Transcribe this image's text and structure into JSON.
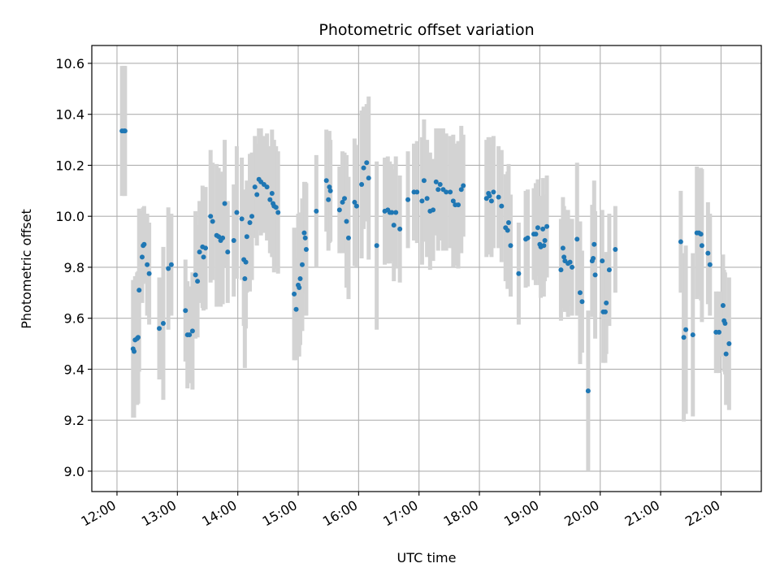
{
  "chart_data": {
    "type": "scatter",
    "title": "Photometric offset variation",
    "xlabel": "UTC time",
    "ylabel": "Photometric offset",
    "x_unit": "UTC time of day",
    "xlim": [
      "11:35",
      "22:40"
    ],
    "ylim": [
      8.92,
      10.67
    ],
    "x_ticks": [
      "12:00",
      "13:00",
      "14:00",
      "15:00",
      "16:00",
      "17:00",
      "18:00",
      "19:00",
      "20:00",
      "21:00",
      "22:00"
    ],
    "y_ticks": [
      "9.0",
      "9.2",
      "9.4",
      "9.6",
      "9.8",
      "10.0",
      "10.2",
      "10.4",
      "10.6"
    ],
    "grid": true,
    "x_tick_rotation": "slanted",
    "colors": {
      "points": "#1f77b4",
      "errorbars": "#d3d3d3",
      "grid": "#b0b0b0"
    },
    "series": [
      {
        "points": [
          {
            "x": "12:05",
            "y": 10.335,
            "err": 0.255
          },
          {
            "x": "12:07",
            "y": 10.335,
            "err": 0.255
          },
          {
            "x": "12:08",
            "y": 10.335,
            "err": 0.255
          },
          {
            "x": "12:16",
            "y": 9.48,
            "err": 0.27
          },
          {
            "x": "12:17",
            "y": 9.47,
            "err": 0.26
          },
          {
            "x": "12:18",
            "y": 9.515,
            "err": 0.25
          },
          {
            "x": "12:20",
            "y": 9.52,
            "err": 0.26
          },
          {
            "x": "12:21",
            "y": 9.525,
            "err": 0.26
          },
          {
            "x": "12:22",
            "y": 9.71,
            "err": 0.32
          },
          {
            "x": "12:25",
            "y": 9.84,
            "err": 0.18
          },
          {
            "x": "12:26",
            "y": 9.885,
            "err": 0.15
          },
          {
            "x": "12:27",
            "y": 9.89,
            "err": 0.15
          },
          {
            "x": "12:30",
            "y": 9.81,
            "err": 0.2
          },
          {
            "x": "12:32",
            "y": 9.775,
            "err": 0.2
          },
          {
            "x": "12:42",
            "y": 9.56,
            "err": 0.2
          },
          {
            "x": "12:46",
            "y": 9.58,
            "err": 0.3
          },
          {
            "x": "12:51",
            "y": 9.795,
            "err": 0.24
          },
          {
            "x": "12:54",
            "y": 9.81,
            "err": 0.2
          },
          {
            "x": "13:08",
            "y": 9.63,
            "err": 0.2
          },
          {
            "x": "13:10",
            "y": 9.535,
            "err": 0.21
          },
          {
            "x": "13:12",
            "y": 9.535,
            "err": 0.19
          },
          {
            "x": "13:15",
            "y": 9.55,
            "err": 0.23
          },
          {
            "x": "13:18",
            "y": 9.77,
            "err": 0.25
          },
          {
            "x": "13:20",
            "y": 9.745,
            "err": 0.22
          },
          {
            "x": "13:22",
            "y": 9.86,
            "err": 0.2
          },
          {
            "x": "13:25",
            "y": 9.88,
            "err": 0.24
          },
          {
            "x": "13:26",
            "y": 9.84,
            "err": 0.21
          },
          {
            "x": "13:28",
            "y": 9.875,
            "err": 0.24
          },
          {
            "x": "13:33",
            "y": 10.0,
            "err": 0.26
          },
          {
            "x": "13:35",
            "y": 9.98,
            "err": 0.23
          },
          {
            "x": "13:39",
            "y": 9.925,
            "err": 0.28
          },
          {
            "x": "13:41",
            "y": 9.92,
            "err": 0.27
          },
          {
            "x": "13:43",
            "y": 9.905,
            "err": 0.26
          },
          {
            "x": "13:45",
            "y": 9.915,
            "err": 0.26
          },
          {
            "x": "13:47",
            "y": 10.05,
            "err": 0.25
          },
          {
            "x": "13:50",
            "y": 9.86,
            "err": 0.2
          },
          {
            "x": "13:56",
            "y": 9.905,
            "err": 0.22
          },
          {
            "x": "13:59",
            "y": 10.015,
            "err": 0.26
          },
          {
            "x": "14:04",
            "y": 9.99,
            "err": 0.24
          },
          {
            "x": "14:06",
            "y": 9.83,
            "err": 0.26
          },
          {
            "x": "14:07",
            "y": 9.755,
            "err": 0.35
          },
          {
            "x": "14:08",
            "y": 9.82,
            "err": 0.26
          },
          {
            "x": "14:09",
            "y": 9.92,
            "err": 0.22
          },
          {
            "x": "14:12",
            "y": 9.975,
            "err": 0.27
          },
          {
            "x": "14:14",
            "y": 10.0,
            "err": 0.25
          },
          {
            "x": "14:17",
            "y": 10.115,
            "err": 0.2
          },
          {
            "x": "14:19",
            "y": 10.085,
            "err": 0.2
          },
          {
            "x": "14:21",
            "y": 10.145,
            "err": 0.2
          },
          {
            "x": "14:23",
            "y": 10.135,
            "err": 0.21
          },
          {
            "x": "14:26",
            "y": 10.125,
            "err": 0.19
          },
          {
            "x": "14:29",
            "y": 10.115,
            "err": 0.21
          },
          {
            "x": "14:32",
            "y": 10.065,
            "err": 0.21
          },
          {
            "x": "14:34",
            "y": 10.09,
            "err": 0.25
          },
          {
            "x": "14:35",
            "y": 10.05,
            "err": 0.21
          },
          {
            "x": "14:36",
            "y": 10.04,
            "err": 0.26
          },
          {
            "x": "14:38",
            "y": 10.035,
            "err": 0.24
          },
          {
            "x": "14:40",
            "y": 10.015,
            "err": 0.24
          },
          {
            "x": "14:56",
            "y": 9.695,
            "err": 0.26
          },
          {
            "x": "14:58",
            "y": 9.635,
            "err": 0.2
          },
          {
            "x": "15:00",
            "y": 9.73,
            "err": 0.28
          },
          {
            "x": "15:01",
            "y": 9.72,
            "err": 0.27
          },
          {
            "x": "15:02",
            "y": 9.755,
            "err": 0.26
          },
          {
            "x": "15:04",
            "y": 9.81,
            "err": 0.26
          },
          {
            "x": "15:06",
            "y": 9.935,
            "err": 0.2
          },
          {
            "x": "15:07",
            "y": 9.915,
            "err": 0.22
          },
          {
            "x": "15:08",
            "y": 9.87,
            "err": 0.26
          },
          {
            "x": "15:18",
            "y": 10.02,
            "err": 0.22
          },
          {
            "x": "15:28",
            "y": 10.14,
            "err": 0.2
          },
          {
            "x": "15:30",
            "y": 10.065,
            "err": 0.2
          },
          {
            "x": "15:31",
            "y": 10.115,
            "err": 0.22
          },
          {
            "x": "15:32",
            "y": 10.1,
            "err": 0.2
          },
          {
            "x": "15:41",
            "y": 10.025,
            "err": 0.17
          },
          {
            "x": "15:44",
            "y": 10.055,
            "err": 0.2
          },
          {
            "x": "15:46",
            "y": 10.07,
            "err": 0.18
          },
          {
            "x": "15:48",
            "y": 9.98,
            "err": 0.26
          },
          {
            "x": "15:50",
            "y": 9.915,
            "err": 0.24
          },
          {
            "x": "15:56",
            "y": 10.055,
            "err": 0.25
          },
          {
            "x": "15:58",
            "y": 10.04,
            "err": 0.24
          },
          {
            "x": "16:03",
            "y": 10.125,
            "err": 0.29
          },
          {
            "x": "16:05",
            "y": 10.19,
            "err": 0.24
          },
          {
            "x": "16:08",
            "y": 10.21,
            "err": 0.23
          },
          {
            "x": "16:10",
            "y": 10.15,
            "err": 0.32
          },
          {
            "x": "16:18",
            "y": 9.885,
            "err": 0.33
          },
          {
            "x": "16:26",
            "y": 10.02,
            "err": 0.21
          },
          {
            "x": "16:29",
            "y": 10.025,
            "err": 0.21
          },
          {
            "x": "16:31",
            "y": 10.015,
            "err": 0.2
          },
          {
            "x": "16:33",
            "y": 10.015,
            "err": 0.19
          },
          {
            "x": "16:35",
            "y": 9.965,
            "err": 0.22
          },
          {
            "x": "16:37",
            "y": 10.015,
            "err": 0.22
          },
          {
            "x": "16:41",
            "y": 9.95,
            "err": 0.21
          },
          {
            "x": "16:49",
            "y": 10.065,
            "err": 0.19
          },
          {
            "x": "16:55",
            "y": 10.095,
            "err": 0.19
          },
          {
            "x": "16:58",
            "y": 10.095,
            "err": 0.2
          },
          {
            "x": "17:03",
            "y": 10.06,
            "err": 0.25
          },
          {
            "x": "17:05",
            "y": 10.14,
            "err": 0.24
          },
          {
            "x": "17:08",
            "y": 10.07,
            "err": 0.23
          },
          {
            "x": "17:11",
            "y": 10.02,
            "err": 0.23
          },
          {
            "x": "17:14",
            "y": 10.025,
            "err": 0.2
          },
          {
            "x": "17:17",
            "y": 10.135,
            "err": 0.21
          },
          {
            "x": "17:19",
            "y": 10.105,
            "err": 0.24
          },
          {
            "x": "17:21",
            "y": 10.125,
            "err": 0.22
          },
          {
            "x": "17:24",
            "y": 10.105,
            "err": 0.24
          },
          {
            "x": "17:27",
            "y": 10.095,
            "err": 0.23
          },
          {
            "x": "17:31",
            "y": 10.095,
            "err": 0.22
          },
          {
            "x": "17:34",
            "y": 10.06,
            "err": 0.26
          },
          {
            "x": "17:36",
            "y": 10.045,
            "err": 0.24
          },
          {
            "x": "17:39",
            "y": 10.045,
            "err": 0.25
          },
          {
            "x": "17:42",
            "y": 10.105,
            "err": 0.25
          },
          {
            "x": "17:44",
            "y": 10.12,
            "err": 0.2
          },
          {
            "x": "18:07",
            "y": 10.07,
            "err": 0.23
          },
          {
            "x": "18:09",
            "y": 10.09,
            "err": 0.22
          },
          {
            "x": "18:10",
            "y": 10.08,
            "err": 0.23
          },
          {
            "x": "18:12",
            "y": 10.06,
            "err": 0.22
          },
          {
            "x": "18:14",
            "y": 10.095,
            "err": 0.22
          },
          {
            "x": "18:19",
            "y": 10.075,
            "err": 0.2
          },
          {
            "x": "18:22",
            "y": 10.04,
            "err": 0.22
          },
          {
            "x": "18:26",
            "y": 9.955,
            "err": 0.21
          },
          {
            "x": "18:28",
            "y": 9.945,
            "err": 0.23
          },
          {
            "x": "18:29",
            "y": 9.975,
            "err": 0.23
          },
          {
            "x": "18:31",
            "y": 9.885,
            "err": 0.2
          },
          {
            "x": "18:39",
            "y": 9.775,
            "err": 0.2
          },
          {
            "x": "18:46",
            "y": 9.91,
            "err": 0.19
          },
          {
            "x": "18:48",
            "y": 9.915,
            "err": 0.19
          },
          {
            "x": "18:54",
            "y": 9.93,
            "err": 0.18
          },
          {
            "x": "18:56",
            "y": 9.93,
            "err": 0.2
          },
          {
            "x": "18:58",
            "y": 9.955,
            "err": 0.19
          },
          {
            "x": "19:00",
            "y": 9.89,
            "err": 0.16
          },
          {
            "x": "19:01",
            "y": 9.88,
            "err": 0.2
          },
          {
            "x": "19:03",
            "y": 9.95,
            "err": 0.2
          },
          {
            "x": "19:04",
            "y": 9.885,
            "err": 0.2
          },
          {
            "x": "19:05",
            "y": 9.905,
            "err": 0.16
          },
          {
            "x": "19:07",
            "y": 9.96,
            "err": 0.2
          },
          {
            "x": "19:21",
            "y": 9.79,
            "err": 0.2
          },
          {
            "x": "19:23",
            "y": 9.875,
            "err": 0.2
          },
          {
            "x": "19:24",
            "y": 9.84,
            "err": 0.2
          },
          {
            "x": "19:25",
            "y": 9.825,
            "err": 0.2
          },
          {
            "x": "19:28",
            "y": 9.815,
            "err": 0.21
          },
          {
            "x": "19:30",
            "y": 9.82,
            "err": 0.17
          },
          {
            "x": "19:32",
            "y": 9.8,
            "err": 0.19
          },
          {
            "x": "19:37",
            "y": 9.91,
            "err": 0.3
          },
          {
            "x": "19:40",
            "y": 9.7,
            "err": 0.28
          },
          {
            "x": "19:42",
            "y": 9.665,
            "err": 0.2
          },
          {
            "x": "19:48",
            "y": 9.315,
            "err": 0.315
          },
          {
            "x": "19:52",
            "y": 9.825,
            "err": 0.22
          },
          {
            "x": "19:53",
            "y": 9.835,
            "err": 0.21
          },
          {
            "x": "19:54",
            "y": 9.89,
            "err": 0.25
          },
          {
            "x": "19:55",
            "y": 9.77,
            "err": 0.25
          },
          {
            "x": "20:02",
            "y": 9.825,
            "err": 0.2
          },
          {
            "x": "20:03",
            "y": 9.625,
            "err": 0.2
          },
          {
            "x": "20:05",
            "y": 9.625,
            "err": 0.2
          },
          {
            "x": "20:06",
            "y": 9.66,
            "err": 0.2
          },
          {
            "x": "20:09",
            "y": 9.79,
            "err": 0.22
          },
          {
            "x": "20:15",
            "y": 9.87,
            "err": 0.17
          },
          {
            "x": "21:20",
            "y": 9.9,
            "err": 0.2
          },
          {
            "x": "21:23",
            "y": 9.525,
            "err": 0.33
          },
          {
            "x": "21:25",
            "y": 9.555,
            "err": 0.33
          },
          {
            "x": "21:32",
            "y": 9.535,
            "err": 0.32
          },
          {
            "x": "21:36",
            "y": 9.935,
            "err": 0.26
          },
          {
            "x": "21:38",
            "y": 9.935,
            "err": 0.25
          },
          {
            "x": "21:40",
            "y": 9.93,
            "err": 0.26
          },
          {
            "x": "21:41",
            "y": 9.885,
            "err": 0.3
          },
          {
            "x": "21:47",
            "y": 9.855,
            "err": 0.2
          },
          {
            "x": "21:49",
            "y": 9.81,
            "err": 0.2
          },
          {
            "x": "21:55",
            "y": 9.545,
            "err": 0.16
          },
          {
            "x": "21:58",
            "y": 9.545,
            "err": 0.16
          },
          {
            "x": "22:02",
            "y": 9.65,
            "err": 0.2
          },
          {
            "x": "22:03",
            "y": 9.59,
            "err": 0.2
          },
          {
            "x": "22:04",
            "y": 9.58,
            "err": 0.2
          },
          {
            "x": "22:05",
            "y": 9.46,
            "err": 0.2
          },
          {
            "x": "22:08",
            "y": 9.5,
            "err": 0.26
          }
        ]
      }
    ]
  }
}
